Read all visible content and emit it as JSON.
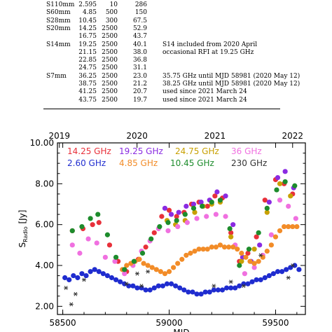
{
  "table": {
    "rows": [
      {
        "rx": "S110mm",
        "freq": "2.595",
        "bw": "10",
        "tsys": "286",
        "note": ""
      },
      {
        "rx": "S60mm",
        "freq": "4.85",
        "bw": "500",
        "tsys": "150",
        "note": ""
      },
      {
        "rx": "S28mm",
        "freq": "10.45",
        "bw": "300",
        "tsys": "67.5",
        "note": ""
      },
      {
        "rx": "S20mm",
        "freq": "14.25",
        "bw": "2500",
        "tsys": "52.9",
        "note": ""
      },
      {
        "rx": "",
        "freq": "16.75",
        "bw": "2500",
        "tsys": "43.7",
        "note": ""
      },
      {
        "rx": "S14mm",
        "freq": "19.25",
        "bw": "2500",
        "tsys": "40.1",
        "note": "S14 included from 2020 April"
      },
      {
        "rx": "",
        "freq": "21.15",
        "bw": "2500",
        "tsys": "38.0",
        "note": "occasional RFI at 19.25 GHz"
      },
      {
        "rx": "",
        "freq": "22.85",
        "bw": "2500",
        "tsys": "36.8",
        "note": ""
      },
      {
        "rx": "",
        "freq": "24.75",
        "bw": "2500",
        "tsys": "31.1",
        "note": ""
      },
      {
        "rx": "S7mm",
        "freq": "36.25",
        "bw": "2500",
        "tsys": "23.0",
        "note": "35.75 GHz until MJD 58981 (2020 May 12)"
      },
      {
        "rx": "",
        "freq": "38.75",
        "bw": "2500",
        "tsys": "21.2",
        "note": "38.25 GHz until MJD 58981 (2020 May 12)"
      },
      {
        "rx": "",
        "freq": "41.25",
        "bw": "2500",
        "tsys": "20.7",
        "note": "used since 2021 March 24"
      },
      {
        "rx": "",
        "freq": "43.75",
        "bw": "2500",
        "tsys": "19.7",
        "note": "used since 2021 March 24"
      }
    ]
  },
  "chart_data": {
    "type": "scatter",
    "title": "",
    "xlabel": "MJD",
    "ylabel": "S_Radio [Jy]",
    "ylabel_main": "S",
    "ylabel_sub": "Radio",
    "ylabel_unit": "[Jy]",
    "xlim": [
      58475,
      59640
    ],
    "ylim": [
      1.6,
      10.0
    ],
    "x_ticks": [
      58500,
      59000,
      59500
    ],
    "x_tick_labels": [
      "58500",
      "59000",
      "59500"
    ],
    "y_ticks": [
      2,
      4,
      6,
      8,
      10
    ],
    "y_tick_labels": [
      "2.00",
      "4.00",
      "6.00",
      "8.00",
      "10.00"
    ],
    "top_axis_ticks": [
      58484,
      58849,
      59215,
      59580
    ],
    "top_axis_labels": [
      "2019",
      "2020",
      "2021",
      "2022"
    ],
    "legend": {
      "placement": "top-left"
    },
    "series": [
      {
        "name": "14.25 GHz",
        "color": "#e8303a",
        "marker": "circle",
        "x": [
          58545,
          58595,
          58640,
          58670,
          58720,
          58760,
          58800,
          58855,
          58890,
          58930,
          58965,
          59000,
          59035,
          59070,
          59105,
          59140,
          59180,
          59215,
          59250,
          59290,
          59330,
          59370,
          59410,
          59450,
          59500,
          59540,
          59580
        ],
        "y": [
          5.7,
          5.8,
          6.0,
          6.1,
          5.0,
          4.2,
          3.7,
          4.3,
          4.9,
          5.6,
          6.4,
          6.7,
          6.4,
          6.6,
          7.0,
          7.1,
          6.9,
          7.4,
          7.3,
          5.6,
          4.2,
          4.6,
          5.4,
          7.2,
          8.2,
          8.0,
          7.5
        ]
      },
      {
        "name": "19.25 GHz",
        "color": "#8a2be2",
        "marker": "circle",
        "x": [
          58980,
          59010,
          59045,
          59080,
          59115,
          59150,
          59190,
          59225,
          59265,
          59300,
          59345,
          59385,
          59425,
          59470,
          59510,
          59545,
          59585
        ],
        "y": [
          6.8,
          6.5,
          6.6,
          6.9,
          7.0,
          7.1,
          7.2,
          7.6,
          7.4,
          6.0,
          4.4,
          4.2,
          5.0,
          7.1,
          8.3,
          8.6,
          7.8
        ]
      },
      {
        "name": "24.75 GHz",
        "color": "#c8a000",
        "marker": "circle",
        "x": [
          58990,
          59030,
          59075,
          59120,
          59160,
          59200,
          59240,
          59290,
          59340,
          59400,
          59460,
          59520,
          59570
        ],
        "y": [
          6.2,
          6.0,
          6.2,
          6.6,
          6.9,
          7.0,
          7.1,
          5.4,
          4.2,
          4.8,
          6.6,
          8.0,
          7.4
        ]
      },
      {
        "name": "36 GHz",
        "color": "#f070e0",
        "marker": "circle",
        "x": [
          58545,
          58580,
          58620,
          58660,
          58700,
          58745,
          58790,
          58830,
          58870,
          58910,
          58950,
          58995,
          59040,
          59085,
          59130,
          59175,
          59220,
          59265,
          59310,
          59355,
          59400,
          59440,
          59480,
          59520,
          59560,
          59595
        ],
        "y": [
          5.0,
          4.6,
          5.3,
          5.1,
          4.4,
          4.2,
          3.6,
          4.0,
          4.7,
          5.2,
          5.8,
          5.7,
          5.9,
          6.1,
          6.3,
          6.4,
          6.5,
          6.4,
          5.0,
          3.6,
          3.9,
          4.5,
          5.5,
          7.2,
          6.9,
          6.3
        ]
      },
      {
        "name": "2.60 GHz",
        "color": "#1f2ccf",
        "marker": "circle",
        "x": [
          58510,
          58530,
          58550,
          58570,
          58590,
          58610,
          58630,
          58650,
          58670,
          58690,
          58710,
          58730,
          58750,
          58770,
          58790,
          58810,
          58830,
          58850,
          58870,
          58890,
          58910,
          58930,
          58950,
          58970,
          58990,
          59010,
          59030,
          59050,
          59070,
          59090,
          59110,
          59130,
          59150,
          59170,
          59190,
          59210,
          59230,
          59250,
          59270,
          59290,
          59310,
          59330,
          59350,
          59370,
          59390,
          59410,
          59430,
          59450,
          59470,
          59490,
          59510,
          59530,
          59550,
          59570,
          59590,
          59610
        ],
        "y": [
          3.4,
          3.3,
          3.5,
          3.4,
          3.6,
          3.5,
          3.7,
          3.8,
          3.7,
          3.6,
          3.5,
          3.4,
          3.3,
          3.2,
          3.1,
          3.0,
          3.0,
          2.9,
          2.9,
          2.8,
          2.8,
          2.9,
          3.0,
          3.0,
          3.1,
          3.1,
          3.0,
          2.9,
          2.8,
          2.7,
          2.7,
          2.6,
          2.6,
          2.7,
          2.7,
          2.8,
          2.8,
          2.8,
          2.9,
          2.9,
          2.9,
          3.0,
          3.1,
          3.1,
          3.2,
          3.3,
          3.3,
          3.4,
          3.5,
          3.6,
          3.7,
          3.7,
          3.8,
          3.9,
          4.0,
          3.8
        ]
      },
      {
        "name": "4.85 GHz",
        "color": "#f28c28",
        "marker": "circle",
        "x": [
          58780,
          58800,
          58820,
          58840,
          58860,
          58880,
          58900,
          58920,
          58940,
          58960,
          58980,
          59000,
          59020,
          59040,
          59060,
          59080,
          59100,
          59120,
          59140,
          59160,
          59180,
          59200,
          59220,
          59240,
          59260,
          59280,
          59300,
          59320,
          59340,
          59360,
          59380,
          59400,
          59420,
          59440,
          59460,
          59480,
          59500,
          59520,
          59540,
          59560,
          59580,
          59600
        ],
        "y": [
          3.8,
          4.0,
          4.1,
          4.2,
          4.3,
          4.1,
          4.0,
          3.9,
          3.8,
          3.7,
          3.6,
          3.7,
          3.9,
          4.1,
          4.3,
          4.5,
          4.6,
          4.7,
          4.8,
          4.8,
          4.8,
          4.9,
          4.9,
          5.0,
          4.9,
          4.9,
          4.9,
          4.8,
          4.6,
          4.4,
          4.2,
          4.1,
          4.2,
          4.4,
          4.7,
          5.0,
          5.4,
          5.7,
          5.9,
          5.9,
          5.9,
          5.9
        ]
      },
      {
        "name": "10.45 GHz",
        "color": "#1d8c2c",
        "marker": "circle",
        "x": [
          58545,
          58590,
          58630,
          58665,
          58710,
          58750,
          58790,
          58835,
          58875,
          58915,
          58955,
          58995,
          59035,
          59075,
          59115,
          59155,
          59200,
          59240,
          59285,
          59330,
          59375,
          59420,
          59460,
          59505,
          59545,
          59590
        ],
        "y": [
          5.7,
          5.9,
          6.3,
          6.5,
          5.5,
          4.4,
          3.8,
          4.2,
          4.6,
          5.3,
          5.9,
          6.1,
          6.2,
          6.5,
          6.8,
          6.9,
          7.1,
          7.2,
          5.8,
          4.0,
          4.8,
          5.6,
          6.8,
          7.7,
          8.1,
          7.9
        ]
      },
      {
        "name": "230 GHz",
        "color": "#333333",
        "marker": "asterisk",
        "x": [
          58515,
          58540,
          58560,
          58600,
          58800,
          58850,
          58870,
          58900,
          59210,
          59290,
          59350,
          59430,
          59560,
          59580
        ],
        "y": [
          2.9,
          2.1,
          2.6,
          3.3,
          3.1,
          3.6,
          3.0,
          3.7,
          3.0,
          3.2,
          3.0,
          4.5,
          3.4,
          4.0
        ]
      }
    ]
  }
}
